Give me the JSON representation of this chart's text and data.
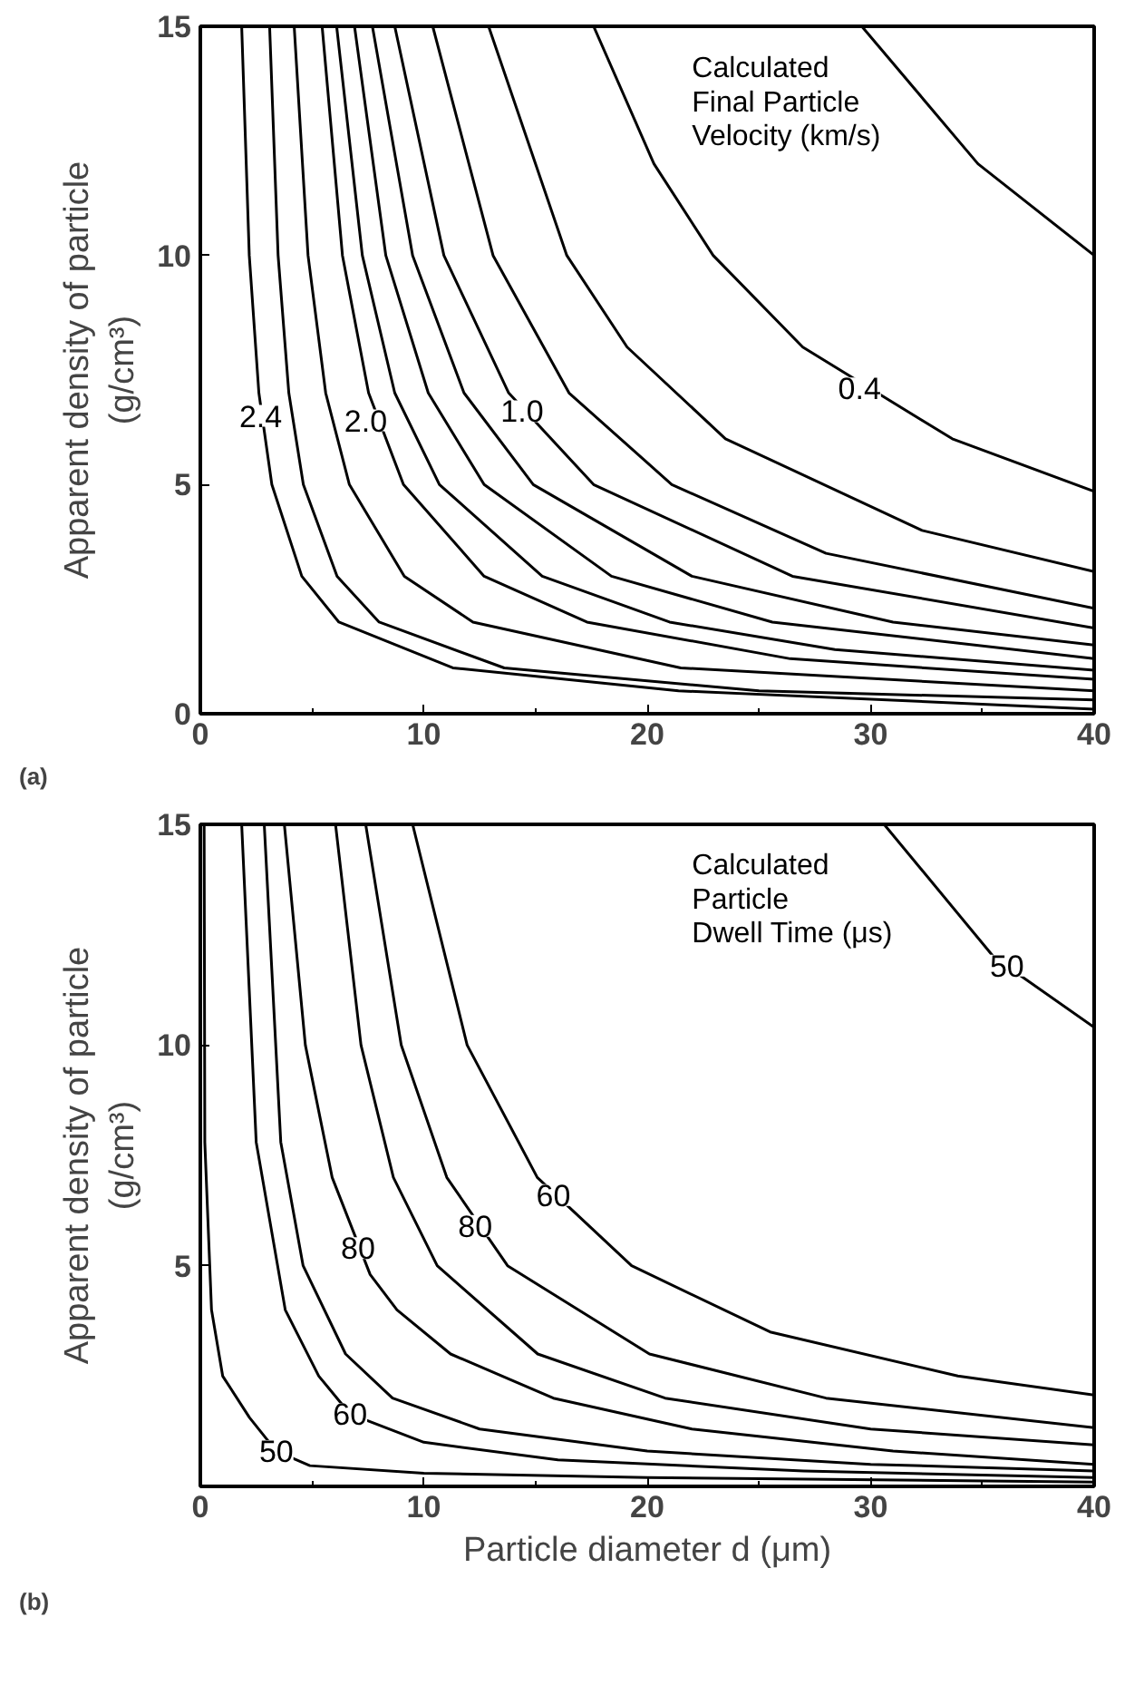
{
  "chart_data": [
    {
      "type": "line",
      "title": "(a)",
      "ylabel": "Apparent density of particle\n(g/cm³)",
      "xlim": [
        0,
        40
      ],
      "ylim": [
        0,
        15
      ],
      "xticks": [
        0,
        10,
        20,
        30,
        40
      ],
      "yticks": [
        0,
        5,
        10,
        15
      ],
      "grid": false,
      "marker": "none",
      "line_style": "solid",
      "series": [
        {
          "color": "#000000",
          "x": [
            29.6,
            34.8,
            40
          ],
          "values": [
            15,
            12,
            10
          ]
        },
        {
          "color": "#000000",
          "x": [
            17.6,
            20.3,
            22.95,
            26.96,
            33.65,
            40
          ],
          "values": [
            15,
            12,
            10,
            8,
            6,
            4.85
          ]
        },
        {
          "color": "#000000",
          "x": [
            12.9,
            16.4,
            19.1,
            23.5,
            32.3,
            40
          ],
          "values": [
            15,
            10,
            8,
            6,
            4,
            3.1
          ]
        },
        {
          "color": "#000000",
          "x": [
            10.4,
            13.1,
            16.5,
            21.1,
            28.0,
            40
          ],
          "values": [
            15,
            10,
            7,
            5,
            3.5,
            2.3
          ]
        },
        {
          "color": "#000000",
          "x": [
            8.7,
            10.9,
            13.8,
            17.6,
            26.5,
            40
          ],
          "values": [
            15,
            10,
            7,
            5,
            3,
            1.87
          ]
        },
        {
          "color": "#000000",
          "x": [
            7.7,
            9.5,
            11.8,
            14.9,
            22.0,
            31.0,
            40
          ],
          "values": [
            15,
            10,
            7,
            5,
            3,
            2,
            1.5
          ]
        },
        {
          "color": "#000000",
          "x": [
            6.9,
            8.3,
            10.2,
            12.7,
            18.4,
            25.6,
            40
          ],
          "values": [
            15,
            10,
            7,
            5,
            3,
            2,
            1.2
          ]
        },
        {
          "color": "#000000",
          "x": [
            6.1,
            7.25,
            8.7,
            10.7,
            15.3,
            21.0,
            28.4,
            40
          ],
          "values": [
            15,
            10,
            7,
            5,
            3,
            2,
            1.4,
            0.95
          ]
        },
        {
          "color": "#000000",
          "x": [
            5.45,
            6.36,
            7.53,
            9.09,
            12.7,
            17.3,
            26.4,
            40
          ],
          "values": [
            15,
            10,
            7,
            5,
            3,
            2,
            1.2,
            0.75
          ]
        },
        {
          "color": "#000000",
          "x": [
            4.2,
            4.82,
            5.61,
            6.67,
            9.13,
            12.2,
            21.5,
            40
          ],
          "values": [
            15,
            10,
            7,
            5,
            3,
            2,
            1,
            0.5
          ]
        },
        {
          "color": "#000000",
          "x": [
            3.1,
            3.48,
            3.96,
            4.61,
            6.12,
            8.0,
            13.6,
            25,
            40
          ],
          "values": [
            15,
            10,
            7,
            5,
            3,
            2,
            1,
            0.5,
            0.3
          ]
        },
        {
          "color": "#000000",
          "x": [
            1.85,
            2.19,
            2.62,
            3.2,
            4.54,
            6.2,
            11.3,
            21.4,
            40
          ],
          "values": [
            15,
            10,
            7,
            5,
            3,
            2,
            1,
            0.5,
            0.1
          ]
        }
      ],
      "annotations": [
        "Calculated\nFinal Particle\nVelocity (km/s)",
        {
          "text": "0.4",
          "x": 29.5,
          "y": 7.1
        },
        {
          "text": "1.0",
          "x": 14.4,
          "y": 6.6
        },
        {
          "text": "2.0",
          "x": 7.4,
          "y": 6.4
        },
        {
          "text": "2.4",
          "x": 2.7,
          "y": 6.5
        }
      ]
    },
    {
      "type": "line",
      "title": "(b)",
      "xlabel": "Particle diameter d (μm)",
      "ylabel": "Apparent density of particle\n(g/cm³)",
      "xlim": [
        0,
        40
      ],
      "ylim": [
        0,
        15
      ],
      "xticks": [
        0,
        10,
        20,
        30,
        40
      ],
      "yticks": [
        5,
        10,
        15
      ],
      "grid": false,
      "marker": "none",
      "line_style": "solid",
      "series": [
        {
          "color": "#000000",
          "x": [
            30.6,
            35.5,
            40
          ],
          "values": [
            15,
            12,
            10.4
          ]
        },
        {
          "color": "#000000",
          "x": [
            9.5,
            11.94,
            15.08,
            19.3,
            25.5,
            33.9,
            40
          ],
          "values": [
            15,
            10,
            7,
            5,
            3.5,
            2.5,
            2.07
          ]
        },
        {
          "color": "#000000",
          "x": [
            7.4,
            8.99,
            11.03,
            13.75,
            20.1,
            28.0,
            40
          ],
          "values": [
            15,
            10,
            7,
            5,
            3,
            2,
            1.33
          ]
        },
        {
          "color": "#000000",
          "x": [
            6.05,
            7.19,
            8.64,
            10.6,
            15.1,
            20.8,
            30,
            40
          ],
          "values": [
            15,
            10,
            7,
            5,
            3,
            2,
            1.3,
            0.94
          ]
        },
        {
          "color": "#000000",
          "x": [
            3.76,
            4.7,
            5.9,
            7.6,
            8.8,
            11.2,
            15.8,
            22,
            31,
            40
          ],
          "values": [
            15,
            10,
            7,
            4.8,
            4,
            3,
            2,
            1.3,
            0.8,
            0.5
          ]
        },
        {
          "color": "#000000",
          "x": [
            2.86,
            3.6,
            4.6,
            6.5,
            8.6,
            12.5,
            20,
            30,
            40
          ],
          "values": [
            15,
            7.8,
            5,
            3,
            2,
            1.3,
            0.8,
            0.5,
            0.35
          ]
        },
        {
          "color": "#000000",
          "x": [
            1.85,
            2.5,
            3.8,
            5.3,
            6.7,
            10,
            16,
            27,
            40
          ],
          "values": [
            15,
            7.8,
            4,
            2.5,
            1.64,
            1,
            0.6,
            0.35,
            0.2
          ]
        },
        {
          "color": "#000000",
          "x": [
            0.17,
            0.2,
            0.5,
            1.0,
            2.2,
            3.4,
            4.9,
            10,
            20,
            40
          ],
          "values": [
            15,
            7.8,
            4,
            2.5,
            1.56,
            0.8,
            0.47,
            0.3,
            0.2,
            0.1
          ]
        }
      ],
      "annotations": [
        "Calculated\nParticle\nDwell Time (μs)",
        {
          "text": "50",
          "x": 36.1,
          "y": 11.8
        },
        {
          "text": "60",
          "x": 15.8,
          "y": 6.6
        },
        {
          "text": "80",
          "x": 12.3,
          "y": 5.9
        },
        {
          "text": "80",
          "x": 7.06,
          "y": 5.4
        },
        {
          "text": "60",
          "x": 6.7,
          "y": 1.64
        },
        {
          "text": "50",
          "x": 3.4,
          "y": 0.8
        }
      ]
    }
  ]
}
